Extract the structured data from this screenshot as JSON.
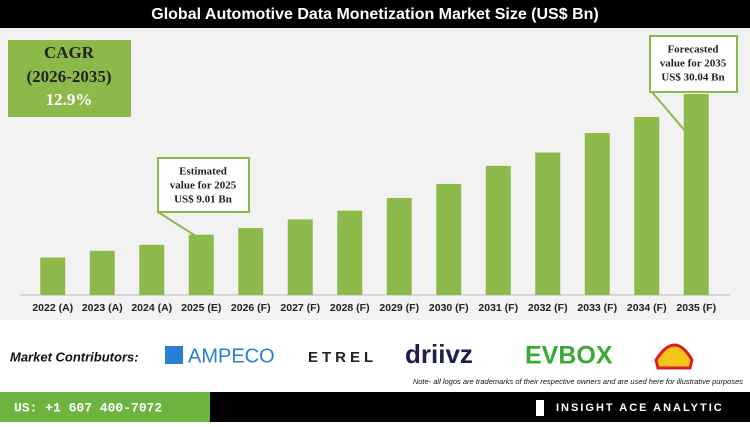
{
  "chart_data": {
    "type": "bar",
    "title": "Global Automotive Data Monetization Market Size (US$ Bn)",
    "categories": [
      "2022 (A)",
      "2023 (A)",
      "2024 (A)",
      "2025 (E)",
      "2026 (F)",
      "2027 (F)",
      "2028 (F)",
      "2029 (F)",
      "2030 (F)",
      "2031 (F)",
      "2032 (F)",
      "2033 (F)",
      "2034 (F)",
      "2035 (F)"
    ],
    "values": [
      5.6,
      6.6,
      7.5,
      9.01,
      10.0,
      11.3,
      12.6,
      14.5,
      16.6,
      19.3,
      21.3,
      24.2,
      26.6,
      30.04
    ],
    "color": "#8db94a",
    "cagr": {
      "label": "CAGR",
      "period": "(2026-2035)",
      "value": "12.9%"
    },
    "annotations": [
      {
        "lines": [
          "Estimated",
          "value for 2025",
          "US$ 9.01 Bn"
        ]
      },
      {
        "lines": [
          "Forecasted",
          "value for 2035",
          "US$ 30.04 Bn"
        ]
      }
    ]
  },
  "contributors": {
    "label": "Market Contributors:",
    "logos": [
      "AMPECO",
      "ETREL",
      "driivz",
      "EVBOX"
    ],
    "note": "Note- all logos are trademarks of their respective owners and are used here for illustrative purposes"
  },
  "footer": {
    "phone": "US: +1 607 400-7072",
    "brand": "INSIGHT ACE ANALYTIC"
  }
}
